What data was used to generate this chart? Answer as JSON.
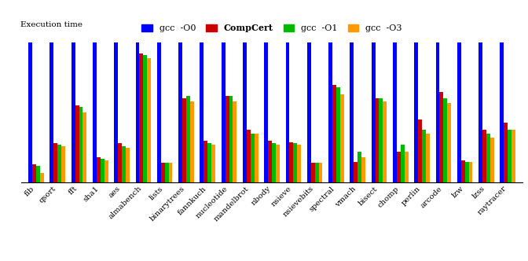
{
  "categories": [
    "fib",
    "qsort",
    "fft",
    "sha1",
    "aes",
    "almabench",
    "lists",
    "binarytrees",
    "fannkuch",
    "nucleotide",
    "mandelbrot",
    "nbody",
    "nsieve",
    "nsievebits",
    "spectral",
    "vmach",
    "bisect",
    "chomp",
    "perlin",
    "arcode",
    "lzw",
    "lzss",
    "raytracer"
  ],
  "gcc_O0": [
    1.0,
    1.0,
    1.0,
    1.0,
    1.0,
    1.0,
    1.0,
    1.0,
    1.0,
    1.0,
    1.0,
    1.0,
    1.0,
    1.0,
    1.0,
    1.0,
    1.0,
    1.0,
    1.0,
    1.0,
    1.0,
    1.0,
    1.0
  ],
  "compcert": [
    0.13,
    0.28,
    0.55,
    0.18,
    0.28,
    0.92,
    0.14,
    0.6,
    0.3,
    0.62,
    0.38,
    0.3,
    0.29,
    0.14,
    0.7,
    0.15,
    0.6,
    0.22,
    0.45,
    0.65,
    0.16,
    0.38,
    0.43
  ],
  "gcc_O1": [
    0.12,
    0.27,
    0.54,
    0.17,
    0.26,
    0.91,
    0.14,
    0.62,
    0.28,
    0.62,
    0.35,
    0.28,
    0.28,
    0.14,
    0.68,
    0.22,
    0.6,
    0.27,
    0.38,
    0.6,
    0.15,
    0.35,
    0.38
  ],
  "gcc_O3": [
    0.07,
    0.26,
    0.5,
    0.16,
    0.25,
    0.89,
    0.14,
    0.58,
    0.27,
    0.58,
    0.35,
    0.27,
    0.27,
    0.14,
    0.63,
    0.18,
    0.58,
    0.22,
    0.35,
    0.57,
    0.15,
    0.32,
    0.38
  ],
  "colors": {
    "gcc_O0": "#0000ff",
    "compcert": "#cc0000",
    "gcc_O1": "#00bb00",
    "gcc_O3": "#ff9900"
  },
  "legend_labels": [
    "gcc  -O0",
    "CompCert",
    "gcc  -O1",
    "gcc  -O3"
  ],
  "exec_time_label": "Execution time",
  "bar_width": 0.18,
  "figsize": [
    6.72,
    3.32
  ],
  "dpi": 100
}
